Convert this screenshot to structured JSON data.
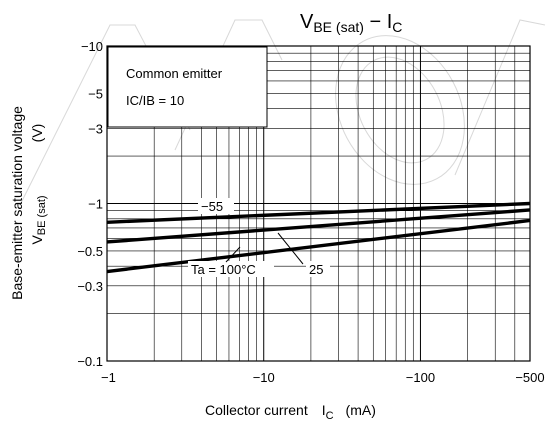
{
  "chart_data": {
    "type": "line",
    "title_main": "V",
    "title_main_sub": "BE (sat)",
    "title_dash": " − I",
    "title_dash_sub": "C",
    "xlabel": "Collector current",
    "xlabel_symbol": "I",
    "xlabel_symbol_sub": "C",
    "xlabel_unit": "(mA)",
    "ylabel_line1": "Base-emitter saturation voltage",
    "ylabel_symbol": "V",
    "ylabel_symbol_sub": "BE (sat)",
    "ylabel_unit": "(V)",
    "x_scale": "log",
    "y_scale": "log",
    "xlim": [
      -1,
      -500
    ],
    "ylim": [
      -0.1,
      -10
    ],
    "x_ticks": [
      {
        "value": -1,
        "label": "−1"
      },
      {
        "value": -10,
        "label": "−10"
      },
      {
        "value": -100,
        "label": "−100"
      },
      {
        "value": -500,
        "label": "−500"
      }
    ],
    "y_ticks": [
      {
        "value": -10,
        "label": "−10"
      },
      {
        "value": -5,
        "label": "−5"
      },
      {
        "value": -3,
        "label": "−3"
      },
      {
        "value": -1,
        "label": "−1"
      },
      {
        "value": -0.5,
        "label": "−0.5"
      },
      {
        "value": -0.3,
        "label": "−0.3"
      },
      {
        "value": -0.1,
        "label": "−0.1"
      }
    ],
    "grid": true,
    "conditions_line1": "Common emitter",
    "conditions_line2": "IC/IB = 10",
    "series": [
      {
        "name": "−55",
        "x": [
          -1,
          -500
        ],
        "y": [
          -0.76,
          -1.0
        ]
      },
      {
        "name": "25",
        "x": [
          -1,
          -500
        ],
        "y": [
          -0.57,
          -0.91
        ]
      },
      {
        "name": "Ta = 100°C",
        "x": [
          -1,
          -500
        ],
        "y": [
          -0.37,
          -0.78
        ]
      }
    ],
    "annotations": [
      {
        "text": "−55",
        "series": 0
      },
      {
        "text": "25",
        "series": 1
      },
      {
        "text": "Ta = 100°C",
        "series": 2
      }
    ]
  }
}
